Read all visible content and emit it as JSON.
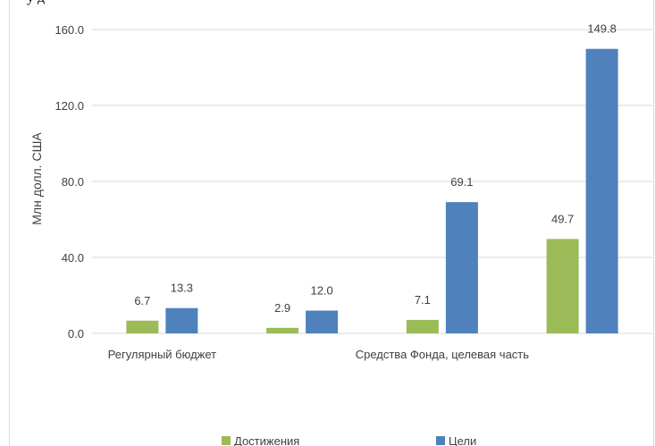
{
  "header_fragment": "у                                                                д",
  "chart_data": {
    "type": "bar",
    "title": "",
    "ylabel": "Млн долл. США",
    "xlabel": "",
    "ylim": [
      0,
      160
    ],
    "yticks": [
      0,
      40,
      80,
      120,
      160
    ],
    "ytick_labels": [
      "0.0",
      "40.0",
      "80.0",
      "120.0",
      "160.0"
    ],
    "grid": true,
    "legend": "bottom",
    "groups": [
      {
        "label": "Регулярный бюджет",
        "span": 1
      },
      {
        "label": "Средства Фонда, целевая часть",
        "span": 3
      }
    ],
    "categories": [
      "",
      "",
      "",
      ""
    ],
    "series": [
      {
        "name": "Достижения",
        "color": "#9bbb59",
        "values": [
          6.7,
          2.9,
          7.1,
          49.7
        ],
        "labels": [
          "6.7",
          "2.9",
          "7.1",
          "49.7"
        ]
      },
      {
        "name": "Цели",
        "color": "#4f81bd",
        "values": [
          13.3,
          12.0,
          69.1,
          149.8
        ],
        "labels": [
          "13.3",
          "12.0",
          "69.1",
          "149.8"
        ]
      }
    ]
  }
}
